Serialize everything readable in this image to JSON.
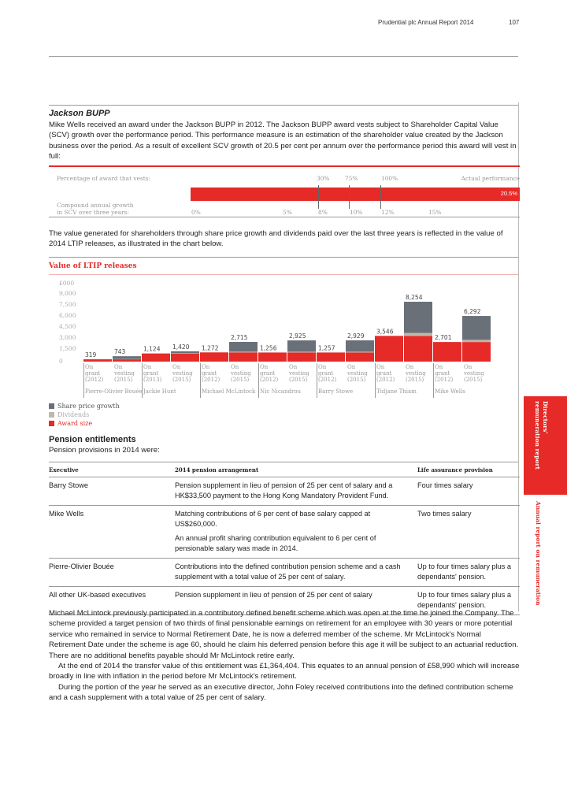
{
  "header": {
    "title": "Prudential plc  Annual Report 2014",
    "page": "107"
  },
  "side": {
    "tab1_line1": "Directors'",
    "tab1_line2": "remuneration report",
    "tab2": "Annual report on remuneration"
  },
  "bupp": {
    "title": "Jackson BUPP",
    "para": "Mike Wells received an award under the Jackson BUPP in 2012. The Jackson BUPP award vests subject to Shareholder Capital Value (SCV) growth over the performance period. This performance measure is an estimation of the shareholder value created by the Jackson business over the period. As a result of excellent SCV growth of 20.5 per cent per annum over the performance period this award will vest in full:",
    "vest_label": "Percentage of award that vests:",
    "vest_ticks": [
      "30%",
      "75%",
      "100%"
    ],
    "actual_label": "Actual performance",
    "actual_value": "20.5%",
    "growth_label_1": "Compound annual growth",
    "growth_label_2": "in SCV over three years:",
    "growth_ticks": [
      "0%",
      "5%",
      "8%",
      "10%",
      "12%",
      "15%"
    ],
    "bar_color": "#e52a27"
  },
  "para2": "The value generated for shareholders through share price growth and dividends paid over the last three years is reflected in the value of 2014 LTIP releases, as illustrated in the chart below.",
  "chart_data": {
    "type": "bar",
    "title": "Value of LTIP releases",
    "ylabel": "£000",
    "yticks": [
      "9,000",
      "7,500",
      "6,000",
      "4,500",
      "3,000",
      "1,500",
      "0"
    ],
    "ylim": [
      0,
      9000
    ],
    "bars": [
      {
        "label": [
          "On",
          "grant",
          "(2012)"
        ],
        "total": "319",
        "award": 319,
        "dividends": 0,
        "share": 0
      },
      {
        "label": [
          "On",
          "vesting",
          "(2015)"
        ],
        "total": "743",
        "award": 319,
        "dividends": 40,
        "share": 384
      },
      {
        "label": [
          "On",
          "grant",
          "(2013)"
        ],
        "total": "1,124",
        "award": 1124,
        "dividends": 0,
        "share": 0
      },
      {
        "label": [
          "On",
          "vesting",
          "(2015)"
        ],
        "total": "1,420",
        "award": 1124,
        "dividends": 60,
        "share": 236
      },
      {
        "label": [
          "On",
          "grant",
          "(2012)"
        ],
        "total": "1,272",
        "award": 1272,
        "dividends": 0,
        "share": 0
      },
      {
        "label": [
          "On",
          "vesting",
          "(2015)"
        ],
        "total": "2,715",
        "award": 1272,
        "dividends": 100,
        "share": 1343
      },
      {
        "label": [
          "On",
          "grant",
          "(2012)"
        ],
        "total": "1,256",
        "award": 1256,
        "dividends": 0,
        "share": 0
      },
      {
        "label": [
          "On",
          "vesting",
          "(2015)"
        ],
        "total": "2,925",
        "award": 1256,
        "dividends": 110,
        "share": 1559
      },
      {
        "label": [
          "On",
          "grant",
          "(2012)"
        ],
        "total": "1,257",
        "award": 1257,
        "dividends": 0,
        "share": 0
      },
      {
        "label": [
          "On",
          "vesting",
          "(2015)"
        ],
        "total": "2,929",
        "award": 1257,
        "dividends": 110,
        "share": 1562
      },
      {
        "label": [
          "On",
          "grant",
          "(2012)"
        ],
        "total": "3,546",
        "award": 3546,
        "dividends": 0,
        "share": 0
      },
      {
        "label": [
          "On",
          "vesting",
          "(2015)"
        ],
        "total": "8,254",
        "award": 3546,
        "dividends": 400,
        "share": 4308
      },
      {
        "label": [
          "On",
          "grant",
          "(2012)"
        ],
        "total": "2,701",
        "award": 2701,
        "dividends": 0,
        "share": 0
      },
      {
        "label": [
          "On",
          "vesting",
          "(2015)"
        ],
        "total": "6,292",
        "award": 2701,
        "dividends": 300,
        "share": 3291
      }
    ],
    "groups": [
      "Pierre-Olivier Bouée",
      "Jackie Hunt",
      "Michael McLintock",
      "Nic Nicandrou",
      "Barry Stowe",
      "Tidjane Thiam",
      "Mike Wells"
    ],
    "legend": [
      {
        "name": "Share price growth",
        "color": "#6a7077"
      },
      {
        "name": "Dividends",
        "color": "#bdb7ae"
      },
      {
        "name": "Award size",
        "color": "#e52a27"
      }
    ]
  },
  "pension": {
    "title": "Pension entitlements",
    "subtitle": "Pension provisions in 2014 were:",
    "headers": [
      "Executive",
      "2014 pension arrangement",
      "Life assurance provision"
    ],
    "rows": [
      {
        "exec": "Barry Stowe",
        "arr": [
          "Pension supplement in lieu of pension of 25 per cent of salary and a HK$33,500 payment to the Hong Kong Mandatory Provident Fund."
        ],
        "life": "Four times salary"
      },
      {
        "exec": "Mike Wells",
        "arr": [
          "Matching contributions of 6 per cent of base salary capped at US$260,000.",
          "An annual profit sharing contribution equivalent to 6 per cent of pensionable salary was made in 2014."
        ],
        "life": "Two times salary"
      },
      {
        "exec": "Pierre-Olivier Bouée",
        "arr": [
          "Contributions into the defined contribution pension scheme and a cash supplement with a total value of 25 per cent of salary."
        ],
        "life": "Up to four times salary plus a dependants' pension."
      },
      {
        "exec": "All other UK-based executives",
        "arr": [
          "Pension supplement in lieu of pension of 25 per cent of salary"
        ],
        "life": "Up to four times salary plus a dependants' pension."
      }
    ]
  },
  "closing": [
    "Michael McLintock previously participated in a contributory defined benefit scheme which was open at the time he joined the Company. The scheme provided a target pension of two thirds of final pensionable earnings on retirement for an employee with 30 years or more potential service who remained in service to Normal Retirement Date, he is now a deferred member of the scheme. Mr McLintock's Normal Retirement Date under the scheme is age 60, should he claim his deferred pension before this age it will be subject to an actuarial reduction. There are no additional benefits payable should Mr McLintock retire early.",
    "At the end of 2014 the transfer value of this entitlement was £1,364,404. This equates to an annual pension of £58,990 which will increase broadly in line with inflation in the period before Mr McLintock's retirement.",
    "During the portion of the year he served as an executive director, John Foley received contributions into the defined contribution scheme and a cash supplement with a total value of 25 per cent of salary."
  ]
}
